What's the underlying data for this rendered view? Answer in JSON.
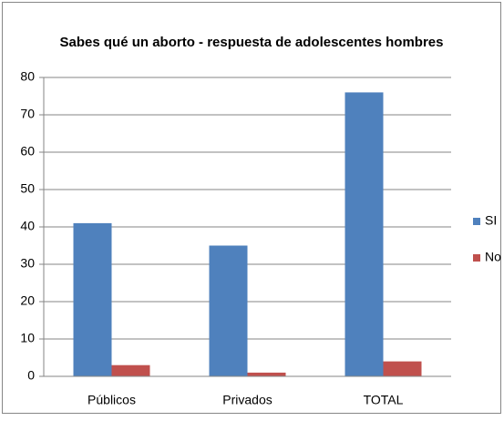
{
  "chart_data": {
    "type": "bar",
    "title": "Sabes qué un aborto  - respuesta de adolescentes hombres",
    "categories": [
      "Públicos",
      "Privados",
      "TOTAL"
    ],
    "series": [
      {
        "name": "SI",
        "color": "#4f81bd",
        "values": [
          41,
          35,
          76
        ]
      },
      {
        "name": "No",
        "color": "#c0504d",
        "values": [
          3,
          1,
          4
        ]
      }
    ],
    "ylim": [
      0,
      80
    ],
    "yticks": [
      0,
      10,
      20,
      30,
      40,
      50,
      60,
      70,
      80
    ],
    "grid": true,
    "legend": "right"
  }
}
